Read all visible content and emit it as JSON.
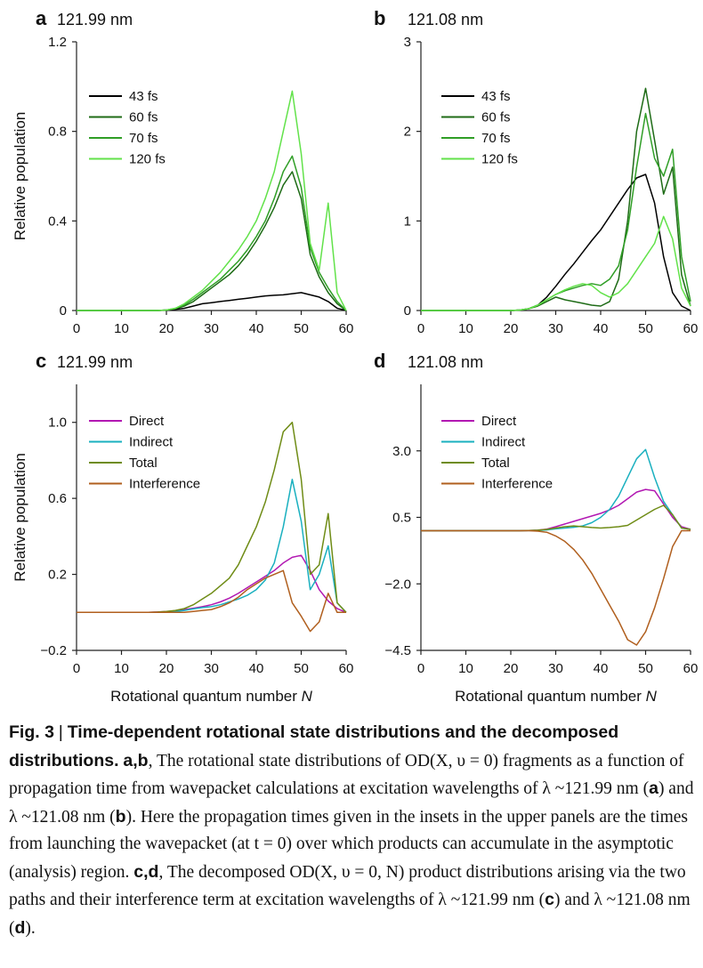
{
  "chart_data": [
    {
      "type": "line",
      "panel": "a",
      "title": "121.99 nm",
      "xlabel": "",
      "ylabel": "Relative population",
      "xlim": [
        0,
        60
      ],
      "ylim": [
        0,
        1.2
      ],
      "xticks": [
        "0",
        "10",
        "20",
        "30",
        "40",
        "50",
        "60"
      ],
      "yticks": [
        "0",
        "0.4",
        "0.8",
        "1.2"
      ],
      "ytick_values": [
        0,
        0.4,
        0.8,
        1.2
      ],
      "legend": "top-left",
      "x": [
        0,
        2,
        4,
        6,
        8,
        10,
        12,
        14,
        16,
        18,
        20,
        22,
        24,
        26,
        28,
        30,
        32,
        34,
        36,
        38,
        40,
        42,
        44,
        46,
        48,
        50,
        52,
        54,
        56,
        58,
        60
      ],
      "series": [
        {
          "name": "43 fs",
          "color": "#000000",
          "values": [
            0,
            0,
            0,
            0,
            0,
            0,
            0,
            0,
            0,
            0,
            0.002,
            0.005,
            0.01,
            0.02,
            0.03,
            0.035,
            0.04,
            0.045,
            0.05,
            0.055,
            0.06,
            0.065,
            0.068,
            0.07,
            0.075,
            0.08,
            0.07,
            0.06,
            0.04,
            0.01,
            0
          ]
        },
        {
          "name": "60 fs",
          "color": "#1e6b16",
          "values": [
            0,
            0,
            0,
            0,
            0,
            0,
            0,
            0,
            0,
            0,
            0.002,
            0.008,
            0.02,
            0.04,
            0.07,
            0.1,
            0.13,
            0.16,
            0.2,
            0.25,
            0.31,
            0.38,
            0.46,
            0.56,
            0.62,
            0.5,
            0.25,
            0.15,
            0.08,
            0.03,
            0
          ]
        },
        {
          "name": "70 fs",
          "color": "#2f9e26",
          "values": [
            0,
            0,
            0,
            0,
            0,
            0,
            0,
            0,
            0,
            0,
            0.002,
            0.01,
            0.025,
            0.05,
            0.08,
            0.11,
            0.14,
            0.18,
            0.22,
            0.27,
            0.33,
            0.4,
            0.5,
            0.62,
            0.69,
            0.55,
            0.28,
            0.17,
            0.1,
            0.04,
            0
          ]
        },
        {
          "name": "120 fs",
          "color": "#62e24a",
          "values": [
            0,
            0,
            0,
            0,
            0,
            0,
            0,
            0,
            0,
            0,
            0.002,
            0.01,
            0.03,
            0.06,
            0.09,
            0.13,
            0.17,
            0.22,
            0.27,
            0.33,
            0.4,
            0.5,
            0.62,
            0.8,
            0.98,
            0.7,
            0.3,
            0.18,
            0.48,
            0.08,
            0
          ]
        }
      ]
    },
    {
      "type": "line",
      "panel": "b",
      "title": "121.08 nm",
      "xlabel": "",
      "ylabel": "",
      "xlim": [
        0,
        60
      ],
      "ylim": [
        0,
        3
      ],
      "xticks": [
        "0",
        "10",
        "20",
        "30",
        "40",
        "50",
        "60"
      ],
      "yticks": [
        "0",
        "1",
        "2",
        "3"
      ],
      "ytick_values": [
        0,
        1,
        2,
        3
      ],
      "legend": "top-left",
      "x": [
        0,
        2,
        4,
        6,
        8,
        10,
        12,
        14,
        16,
        18,
        20,
        22,
        24,
        26,
        28,
        30,
        32,
        34,
        36,
        38,
        40,
        42,
        44,
        46,
        48,
        50,
        52,
        54,
        56,
        58,
        60
      ],
      "series": [
        {
          "name": "43 fs",
          "color": "#000000",
          "values": [
            0,
            0,
            0,
            0,
            0,
            0,
            0,
            0,
            0,
            0,
            0,
            0.005,
            0.02,
            0.06,
            0.15,
            0.27,
            0.4,
            0.52,
            0.65,
            0.78,
            0.9,
            1.05,
            1.2,
            1.35,
            1.48,
            1.52,
            1.2,
            0.6,
            0.2,
            0.05,
            0
          ]
        },
        {
          "name": "60 fs",
          "color": "#1e6b16",
          "values": [
            0,
            0,
            0,
            0,
            0,
            0,
            0,
            0,
            0,
            0,
            0,
            0.005,
            0.02,
            0.05,
            0.1,
            0.15,
            0.12,
            0.1,
            0.08,
            0.06,
            0.05,
            0.1,
            0.35,
            1.0,
            2.0,
            2.48,
            1.9,
            1.3,
            1.6,
            0.4,
            0.05
          ]
        },
        {
          "name": "70 fs",
          "color": "#2f9e26",
          "values": [
            0,
            0,
            0,
            0,
            0,
            0,
            0,
            0,
            0,
            0,
            0,
            0.005,
            0.02,
            0.06,
            0.12,
            0.18,
            0.22,
            0.25,
            0.28,
            0.3,
            0.28,
            0.35,
            0.5,
            0.9,
            1.6,
            2.2,
            1.7,
            1.5,
            1.8,
            0.6,
            0.1
          ]
        },
        {
          "name": "120 fs",
          "color": "#62e24a",
          "values": [
            0,
            0,
            0,
            0,
            0,
            0,
            0,
            0,
            0,
            0,
            0,
            0.005,
            0.02,
            0.06,
            0.12,
            0.18,
            0.23,
            0.27,
            0.3,
            0.28,
            0.2,
            0.15,
            0.2,
            0.3,
            0.45,
            0.6,
            0.75,
            1.05,
            0.8,
            0.25,
            0.05
          ]
        }
      ]
    },
    {
      "type": "line",
      "panel": "c",
      "title": "121.99 nm",
      "xlabel": "Rotational quantum number N",
      "ylabel": "Relative population",
      "xlim": [
        0,
        60
      ],
      "ylim": [
        -0.2,
        1.2
      ],
      "xticks": [
        "0",
        "10",
        "20",
        "30",
        "40",
        "50",
        "60"
      ],
      "yticks": [
        "−0.2",
        "0.2",
        "0.6",
        "1.0"
      ],
      "ytick_values": [
        -0.2,
        0.2,
        0.6,
        1.0
      ],
      "legend": "top-left",
      "x": [
        0,
        2,
        4,
        6,
        8,
        10,
        12,
        14,
        16,
        18,
        20,
        22,
        24,
        26,
        28,
        30,
        32,
        34,
        36,
        38,
        40,
        42,
        44,
        46,
        48,
        50,
        52,
        54,
        56,
        58,
        60
      ],
      "series": [
        {
          "name": "Direct",
          "color": "#b218b2",
          "values": [
            0,
            0,
            0,
            0,
            0,
            0,
            0,
            0,
            0,
            0.002,
            0.004,
            0.008,
            0.015,
            0.022,
            0.03,
            0.04,
            0.055,
            0.075,
            0.1,
            0.13,
            0.16,
            0.19,
            0.22,
            0.26,
            0.29,
            0.3,
            0.22,
            0.12,
            0.06,
            0.02,
            0
          ]
        },
        {
          "name": "Indirect",
          "color": "#1ab0bf",
          "values": [
            0,
            0,
            0,
            0,
            0,
            0,
            0,
            0,
            0,
            0,
            0.002,
            0.005,
            0.01,
            0.018,
            0.025,
            0.03,
            0.04,
            0.055,
            0.07,
            0.09,
            0.12,
            0.17,
            0.26,
            0.45,
            0.7,
            0.48,
            0.12,
            0.2,
            0.35,
            0.05,
            0
          ]
        },
        {
          "name": "Total",
          "color": "#6f8c16",
          "values": [
            0,
            0,
            0,
            0,
            0,
            0,
            0,
            0,
            0,
            0.002,
            0.005,
            0.01,
            0.02,
            0.04,
            0.07,
            0.1,
            0.14,
            0.18,
            0.25,
            0.35,
            0.45,
            0.58,
            0.75,
            0.95,
            1.0,
            0.7,
            0.2,
            0.25,
            0.52,
            0.05,
            0
          ]
        },
        {
          "name": "Interference",
          "color": "#b05f1e",
          "values": [
            0,
            0,
            0,
            0,
            0,
            0,
            0,
            0,
            0,
            0,
            0,
            0,
            0,
            0.005,
            0.01,
            0.015,
            0.03,
            0.05,
            0.08,
            0.12,
            0.15,
            0.18,
            0.2,
            0.22,
            0.05,
            -0.02,
            -0.1,
            -0.05,
            0.1,
            0,
            0
          ]
        }
      ]
    },
    {
      "type": "line",
      "panel": "d",
      "title": "121.08 nm",
      "xlabel": "Rotational quantum number N",
      "ylabel": "",
      "xlim": [
        0,
        60
      ],
      "ylim": [
        -4.5,
        5.5
      ],
      "xticks": [
        "0",
        "10",
        "20",
        "30",
        "40",
        "50",
        "60"
      ],
      "yticks": [
        "−4.5",
        "−2.0",
        "0.5",
        "3.0"
      ],
      "ytick_values": [
        -4.5,
        -2.0,
        0.5,
        3.0
      ],
      "legend": "top-left",
      "x": [
        0,
        2,
        4,
        6,
        8,
        10,
        12,
        14,
        16,
        18,
        20,
        22,
        24,
        26,
        28,
        30,
        32,
        34,
        36,
        38,
        40,
        42,
        44,
        46,
        48,
        50,
        52,
        54,
        56,
        58,
        60
      ],
      "series": [
        {
          "name": "Direct",
          "color": "#b218b2",
          "values": [
            0,
            0,
            0,
            0,
            0,
            0,
            0,
            0,
            0,
            0,
            0,
            0,
            0.005,
            0.02,
            0.06,
            0.15,
            0.25,
            0.35,
            0.45,
            0.55,
            0.65,
            0.78,
            0.95,
            1.2,
            1.45,
            1.55,
            1.5,
            1.0,
            0.5,
            0.15,
            0.05
          ]
        },
        {
          "name": "Indirect",
          "color": "#1ab0bf",
          "values": [
            0,
            0,
            0,
            0,
            0,
            0,
            0,
            0,
            0,
            0,
            0,
            0,
            0.002,
            0.01,
            0.03,
            0.07,
            0.1,
            0.13,
            0.18,
            0.3,
            0.5,
            0.8,
            1.3,
            2.0,
            2.7,
            3.05,
            2.0,
            1.1,
            0.6,
            0.1,
            0.05
          ]
        },
        {
          "name": "Total",
          "color": "#6f8c16",
          "values": [
            0,
            0,
            0,
            0,
            0,
            0,
            0,
            0,
            0,
            0,
            0,
            0,
            0.005,
            0.02,
            0.05,
            0.1,
            0.15,
            0.18,
            0.15,
            0.12,
            0.1,
            0.12,
            0.15,
            0.2,
            0.4,
            0.6,
            0.8,
            0.95,
            0.6,
            0.1,
            0.05
          ]
        },
        {
          "name": "Interference",
          "color": "#b05f1e",
          "values": [
            0,
            0,
            0,
            0,
            0,
            0,
            0,
            0,
            0,
            0,
            0,
            0,
            0,
            -0.02,
            -0.06,
            -0.2,
            -0.4,
            -0.7,
            -1.1,
            -1.6,
            -2.2,
            -2.8,
            -3.4,
            -4.1,
            -4.3,
            -3.8,
            -2.9,
            -1.8,
            -0.6,
            0,
            0
          ]
        }
      ]
    }
  ],
  "caption": {
    "label": "Fig. 3",
    "separator": "|",
    "title": "Time-dependent rotational state distributions and the decomposed distributions.",
    "panel_ab": "a,b",
    "text_ab_1": "The rotational state distributions of OD(X, υ = 0) fragments as a function of propagation time from wavepacket calculations at excitation wavelengths of λ ~121.99 nm (",
    "ref_a": "a",
    "text_ab_2": ") and λ ~121.08 nm (",
    "ref_b": "b",
    "text_ab_3": "). Here the propagation times given in the insets in the upper panels are the times from launching the wavepacket (at t = 0) over which products can accumulate in the asymptotic (analysis) region.",
    "panel_cd": "c,d",
    "text_cd_1": "The decomposed OD(X, υ = 0, N) product distributions arising via the two paths and their interference term at excitation wavelengths of λ ~121.99 nm (",
    "ref_c": "c",
    "text_cd_2": ") and λ ~121.08 nm (",
    "ref_d": "d",
    "text_cd_3": ")."
  }
}
